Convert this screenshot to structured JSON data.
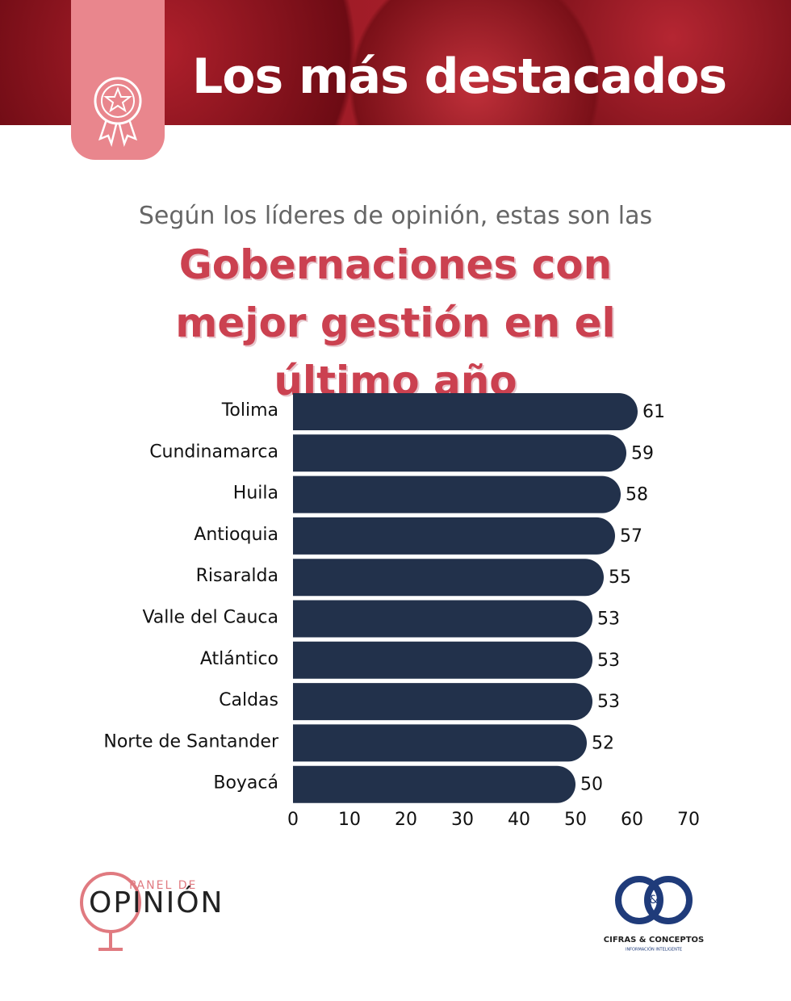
{
  "header": {
    "title": "Los más destacados"
  },
  "chart_data": {
    "type": "hbar",
    "subtitle": "Según los líderes de opinión, estas son las",
    "title": "Gobernaciones con mejor gestión en el último año",
    "categories": [
      "Tolima",
      "Cundinamarca",
      "Huila",
      "Antioquia",
      "Risaralda",
      "Valle del Cauca",
      "Atlántico",
      "Caldas",
      "Norte de Santander",
      "Boyacá"
    ],
    "values": [
      61,
      59,
      58,
      57,
      55,
      53,
      53,
      53,
      52,
      50
    ],
    "color": "#22314b",
    "xlim": [
      0,
      70
    ],
    "xticks": [
      0,
      10,
      20,
      30,
      40,
      50,
      60,
      70
    ],
    "grid": false
  },
  "footer": {
    "left_logo": {
      "top": "PANEL DE",
      "main": "OPINIÓN"
    },
    "right_logo": {
      "mark": "&",
      "name": "CIFRAS & CONCEPTOS",
      "tagline": "INFORMACIÓN INTELIGENTE"
    }
  }
}
